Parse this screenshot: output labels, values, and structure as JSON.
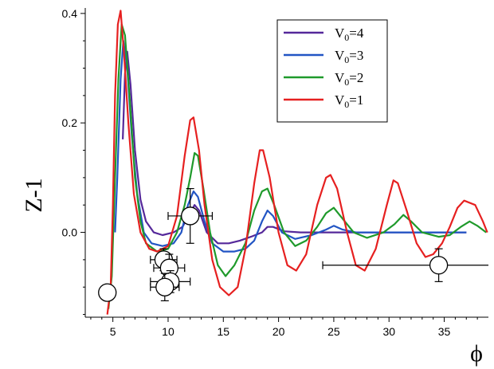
{
  "chart_data": {
    "type": "line",
    "xlabel": "ϕ",
    "ylabel": "Z-1",
    "xlim": [
      2.5,
      39
    ],
    "ylim": [
      -0.155,
      0.41
    ],
    "x_ticks": [
      5,
      10,
      15,
      20,
      25,
      30,
      35
    ],
    "y_ticks": [
      0.4,
      0.2,
      0.0
    ],
    "x_tick_labels": [
      "5",
      "10",
      "15",
      "20",
      "25",
      "30",
      "35"
    ],
    "y_tick_labels": [
      "0.4",
      "0.2",
      "0.0"
    ],
    "grid": false,
    "legend_position": "top-right",
    "series": [
      {
        "name": "V0=4",
        "label_main": "V",
        "label_sub": "0",
        "label_rest": "=4",
        "color": "#55289a",
        "points": [
          [
            5.9,
            0.17
          ],
          [
            6.1,
            0.29
          ],
          [
            6.3,
            0.33
          ],
          [
            6.6,
            0.27
          ],
          [
            7.0,
            0.15
          ],
          [
            7.5,
            0.06
          ],
          [
            8.0,
            0.02
          ],
          [
            8.7,
            0.0
          ],
          [
            9.5,
            -0.005
          ],
          [
            10.5,
            0.0
          ],
          [
            11.3,
            0.01
          ],
          [
            12.0,
            0.035
          ],
          [
            12.4,
            0.05
          ],
          [
            12.8,
            0.04
          ],
          [
            13.5,
            0.0
          ],
          [
            14.5,
            -0.02
          ],
          [
            15.5,
            -0.02
          ],
          [
            16.5,
            -0.015
          ],
          [
            17.5,
            -0.008
          ],
          [
            18.5,
            0.0
          ],
          [
            19.0,
            0.01
          ],
          [
            19.5,
            0.01
          ],
          [
            20.5,
            0.002
          ],
          [
            22,
            0.0
          ],
          [
            25,
            0.0
          ],
          [
            28,
            0.0
          ],
          [
            31,
            0.0
          ],
          [
            34,
            0.0
          ],
          [
            37,
            0.0
          ]
        ]
      },
      {
        "name": "V0=3",
        "label_main": "V",
        "label_sub": "0",
        "label_rest": "=3",
        "color": "#2255c4",
        "points": [
          [
            5.2,
            0.0
          ],
          [
            5.4,
            0.1
          ],
          [
            5.7,
            0.28
          ],
          [
            5.95,
            0.35
          ],
          [
            6.3,
            0.3
          ],
          [
            6.7,
            0.18
          ],
          [
            7.2,
            0.07
          ],
          [
            7.8,
            0.0
          ],
          [
            8.5,
            -0.02
          ],
          [
            9.5,
            -0.025
          ],
          [
            10.5,
            -0.02
          ],
          [
            11.2,
            0.0
          ],
          [
            11.8,
            0.05
          ],
          [
            12.3,
            0.075
          ],
          [
            12.7,
            0.065
          ],
          [
            13.3,
            0.02
          ],
          [
            14.0,
            -0.02
          ],
          [
            15.0,
            -0.035
          ],
          [
            16.0,
            -0.035
          ],
          [
            17.0,
            -0.03
          ],
          [
            17.8,
            -0.015
          ],
          [
            18.5,
            0.02
          ],
          [
            19.0,
            0.04
          ],
          [
            19.5,
            0.03
          ],
          [
            20.3,
            0.0
          ],
          [
            21.5,
            -0.012
          ],
          [
            23,
            -0.005
          ],
          [
            24.3,
            0.005
          ],
          [
            25.0,
            0.012
          ],
          [
            25.8,
            0.005
          ],
          [
            27,
            0.0
          ],
          [
            30,
            0.0
          ],
          [
            34,
            0.0
          ],
          [
            37,
            0.0
          ]
        ]
      },
      {
        "name": "V0=2",
        "label_main": "V",
        "label_sub": "0",
        "label_rest": "=2",
        "color": "#1f9a2b",
        "points": [
          [
            4.6,
            -0.14
          ],
          [
            4.9,
            -0.08
          ],
          [
            5.2,
            0.1
          ],
          [
            5.5,
            0.28
          ],
          [
            5.8,
            0.38
          ],
          [
            6.1,
            0.36
          ],
          [
            6.5,
            0.25
          ],
          [
            7.0,
            0.1
          ],
          [
            7.5,
            0.02
          ],
          [
            8.0,
            -0.02
          ],
          [
            9.0,
            -0.035
          ],
          [
            10.0,
            -0.03
          ],
          [
            10.8,
            0.0
          ],
          [
            11.5,
            0.05
          ],
          [
            12.0,
            0.1
          ],
          [
            12.4,
            0.145
          ],
          [
            12.7,
            0.14
          ],
          [
            13.2,
            0.08
          ],
          [
            13.8,
            0.0
          ],
          [
            14.5,
            -0.06
          ],
          [
            15.2,
            -0.08
          ],
          [
            16.0,
            -0.06
          ],
          [
            17.0,
            -0.02
          ],
          [
            17.8,
            0.04
          ],
          [
            18.5,
            0.075
          ],
          [
            19.0,
            0.08
          ],
          [
            19.6,
            0.05
          ],
          [
            20.5,
            0.0
          ],
          [
            21.5,
            -0.025
          ],
          [
            22.5,
            -0.015
          ],
          [
            23.5,
            0.01
          ],
          [
            24.3,
            0.035
          ],
          [
            25.0,
            0.045
          ],
          [
            25.8,
            0.025
          ],
          [
            26.8,
            0.0
          ],
          [
            28,
            -0.01
          ],
          [
            29.5,
            0.0
          ],
          [
            30.5,
            0.015
          ],
          [
            31.3,
            0.032
          ],
          [
            32.0,
            0.02
          ],
          [
            33,
            0.0
          ],
          [
            34.5,
            -0.008
          ],
          [
            35.5,
            -0.005
          ],
          [
            36.5,
            0.01
          ],
          [
            37.3,
            0.02
          ],
          [
            38.0,
            0.012
          ],
          [
            38.8,
            0.0
          ]
        ]
      },
      {
        "name": "V0=1",
        "label_main": "V",
        "label_sub": "0",
        "label_rest": "=1",
        "color": "#e62020",
        "points": [
          [
            4.5,
            -0.15
          ],
          [
            4.8,
            -0.1
          ],
          [
            5.0,
            0.05
          ],
          [
            5.2,
            0.25
          ],
          [
            5.45,
            0.38
          ],
          [
            5.7,
            0.405
          ],
          [
            6.0,
            0.33
          ],
          [
            6.4,
            0.2
          ],
          [
            6.9,
            0.07
          ],
          [
            7.5,
            0.0
          ],
          [
            8.3,
            -0.03
          ],
          [
            9.0,
            -0.035
          ],
          [
            10.0,
            -0.025
          ],
          [
            10.8,
            0.03
          ],
          [
            11.5,
            0.14
          ],
          [
            12.0,
            0.205
          ],
          [
            12.3,
            0.21
          ],
          [
            12.8,
            0.15
          ],
          [
            13.3,
            0.05
          ],
          [
            14.0,
            -0.05
          ],
          [
            14.7,
            -0.1
          ],
          [
            15.5,
            -0.115
          ],
          [
            16.3,
            -0.1
          ],
          [
            17.0,
            -0.03
          ],
          [
            17.8,
            0.09
          ],
          [
            18.3,
            0.15
          ],
          [
            18.6,
            0.15
          ],
          [
            19.2,
            0.1
          ],
          [
            20.0,
            0.0
          ],
          [
            20.8,
            -0.06
          ],
          [
            21.6,
            -0.07
          ],
          [
            22.5,
            -0.04
          ],
          [
            23.5,
            0.05
          ],
          [
            24.3,
            0.1
          ],
          [
            24.7,
            0.105
          ],
          [
            25.3,
            0.08
          ],
          [
            26.2,
            0.0
          ],
          [
            27.0,
            -0.06
          ],
          [
            27.8,
            -0.07
          ],
          [
            28.8,
            -0.03
          ],
          [
            29.8,
            0.05
          ],
          [
            30.4,
            0.095
          ],
          [
            30.8,
            0.09
          ],
          [
            31.6,
            0.04
          ],
          [
            32.5,
            -0.02
          ],
          [
            33.3,
            -0.045
          ],
          [
            34.0,
            -0.04
          ],
          [
            34.8,
            -0.02
          ],
          [
            35.5,
            0.01
          ],
          [
            36.2,
            0.045
          ],
          [
            36.8,
            0.058
          ],
          [
            37.8,
            0.05
          ],
          [
            38.5,
            0.02
          ],
          [
            38.9,
            0.0
          ]
        ]
      }
    ],
    "experimental_points": [
      {
        "x": 4.5,
        "y": -0.11,
        "yerr": 0.01,
        "xerr": 0
      },
      {
        "x": 12.0,
        "y": 0.03,
        "yerr": 0.05,
        "xerr": 2.0
      },
      {
        "x": 9.6,
        "y": -0.05,
        "yerr": 0.02,
        "xerr": 1.2
      },
      {
        "x": 10.1,
        "y": -0.065,
        "yerr": 0.025,
        "xerr": 1.4
      },
      {
        "x": 10.2,
        "y": -0.09,
        "yerr": 0.02,
        "xerr": 1.8
      },
      {
        "x": 9.7,
        "y": -0.1,
        "yerr": 0.025,
        "xerr": 1.3
      },
      {
        "x": 34.5,
        "y": -0.06,
        "yerr": 0.03,
        "xerr": 10.5
      }
    ]
  }
}
